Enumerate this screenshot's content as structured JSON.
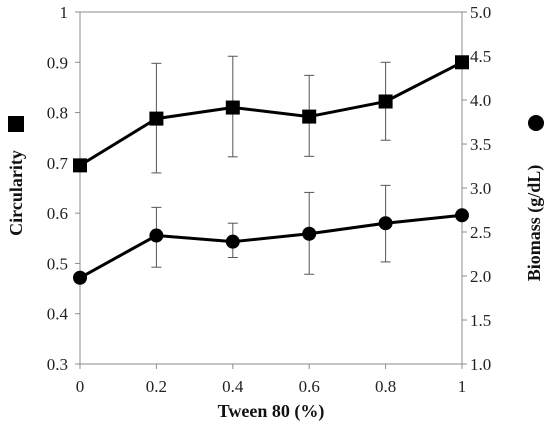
{
  "chart_data": {
    "type": "line",
    "x": [
      0,
      0.2,
      0.4,
      0.6,
      0.8,
      1
    ],
    "x_ticks": [
      "0",
      "0.2",
      "0.4",
      "0.6",
      "0.8",
      "1"
    ],
    "xlabel": "Tween 80 (%)",
    "xlim": [
      0,
      1
    ],
    "ylabel_left": "Circularity",
    "ylim_left": [
      0.3,
      1
    ],
    "y_ticks_left": [
      "0.3",
      "0.4",
      "0.5",
      "0.6",
      "0.7",
      "0.8",
      "0.9",
      "1"
    ],
    "ylabel_right": "Biomass (g/dL)",
    "ylim_right": [
      1.0,
      5.0
    ],
    "y_ticks_right": [
      "1.0",
      "1.5",
      "2.0",
      "2.5",
      "3.0",
      "3.5",
      "4.0",
      "4.5",
      "5.0"
    ],
    "legend_left_marker": "square",
    "legend_right_marker": "circle",
    "grid": false,
    "series": [
      {
        "marker": "square",
        "axis": "left",
        "color": "#000000",
        "values": [
          0.695,
          0.788,
          0.81,
          0.792,
          0.822,
          0.9
        ],
        "err_low": [
          0.695,
          0.68,
          0.712,
          0.713,
          0.745,
          0.9
        ],
        "err_high": [
          0.695,
          0.898,
          0.912,
          0.874,
          0.9,
          0.9
        ]
      },
      {
        "marker": "circle",
        "axis": "right",
        "color": "#000000",
        "values": [
          1.98,
          2.46,
          2.39,
          2.48,
          2.6,
          2.69
        ],
        "err_low": [
          1.98,
          2.1,
          2.21,
          2.02,
          2.16,
          2.69
        ],
        "err_high": [
          1.98,
          2.78,
          2.6,
          2.95,
          3.03,
          2.69
        ]
      }
    ]
  }
}
